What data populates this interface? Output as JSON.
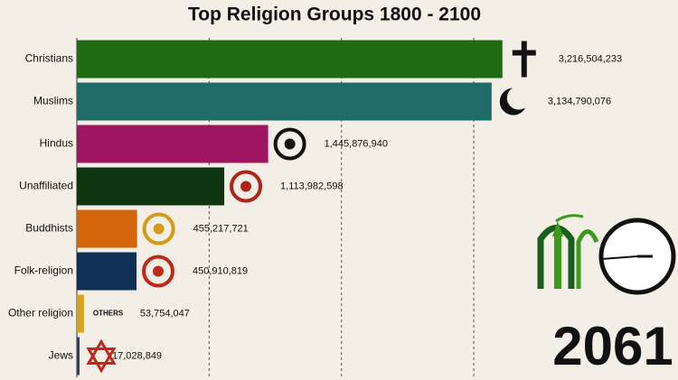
{
  "chart_data": {
    "type": "hbar",
    "title": "Top Religion Groups 1800 - 2100",
    "year": "2061",
    "others_label": "OTHERS",
    "categories": [
      "Christians",
      "Muslims",
      "Hindus",
      "Unaffiliated",
      "Buddhists",
      "Folk-religion",
      "Other religion",
      "Jews"
    ],
    "values": [
      3216504233,
      3134790076,
      1445876940,
      1113982598,
      455217721,
      450910819,
      53754047,
      17028849
    ],
    "value_labels": [
      "3,216,504,233",
      "3,134,790,076",
      "1,445,876,940",
      "1,113,982,598",
      "455,217,721",
      "450,910,819",
      "53,754,047",
      "17,028,849"
    ],
    "colors": [
      "#1e6b12",
      "#1f6b68",
      "#a0155f",
      "#0e3510",
      "#d4650a",
      "#0f2f55",
      "#d9a21b",
      "#3a3a6a"
    ],
    "xlim": [
      0,
      3300000000
    ],
    "xticks": [
      1000000000,
      2000000000,
      3000000000
    ],
    "grid": true
  }
}
